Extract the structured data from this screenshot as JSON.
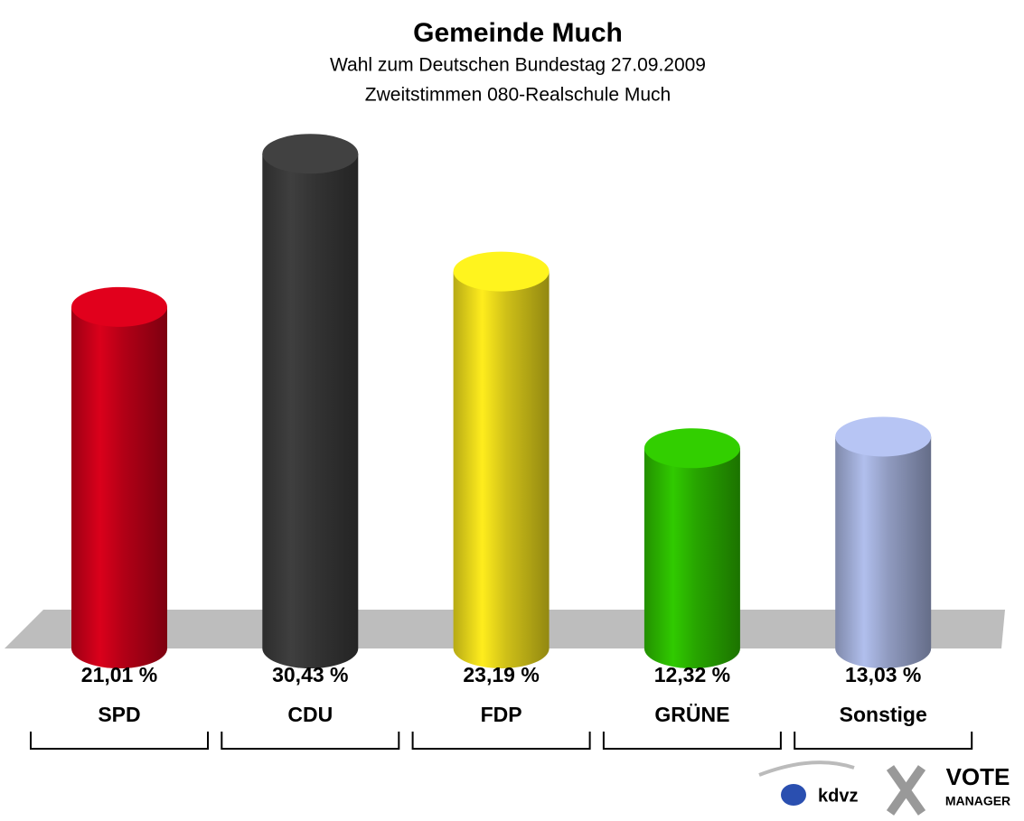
{
  "chart_data": {
    "type": "bar",
    "title": "Gemeinde Much",
    "subtitle": [
      "Wahl zum Deutschen Bundestag 27.09.2009",
      "Zweitstimmen 080-Realschule Much"
    ],
    "categories": [
      "SPD",
      "CDU",
      "FDP",
      "GRÜNE",
      "Sonstige"
    ],
    "values": [
      21.01,
      30.43,
      23.19,
      12.32,
      13.03
    ],
    "value_labels": [
      "21,01 %",
      "30,43 %",
      "23,19 %",
      "12,32 %",
      "13,03 %"
    ],
    "colors": [
      "#d0001a",
      "#3c3c3c",
      "#f4e21c",
      "#2ec000",
      "#a9b6e2"
    ],
    "logo": {
      "left": "kdvz",
      "right": [
        "VOTE",
        "MANAGER"
      ]
    }
  }
}
